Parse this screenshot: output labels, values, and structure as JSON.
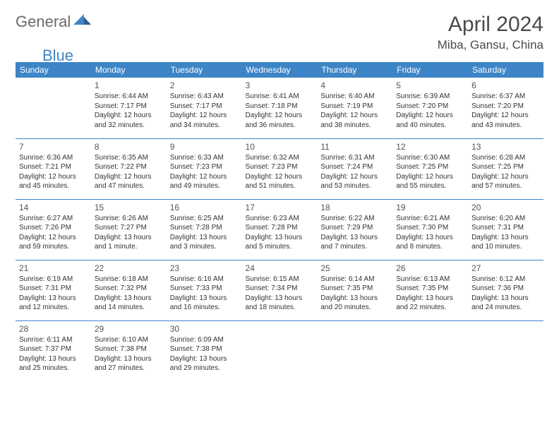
{
  "logo": {
    "part1": "General",
    "part2": "Blue"
  },
  "title": "April 2024",
  "location": "Miba, Gansu, China",
  "colors": {
    "accent": "#3d85c6",
    "text": "#333333",
    "logo_gray": "#6b6b6b"
  },
  "weekdays": [
    "Sunday",
    "Monday",
    "Tuesday",
    "Wednesday",
    "Thursday",
    "Friday",
    "Saturday"
  ],
  "weeks": [
    [
      null,
      {
        "n": "1",
        "sr": "6:44 AM",
        "ss": "7:17 PM",
        "dl": "12 hours and 32 minutes."
      },
      {
        "n": "2",
        "sr": "6:43 AM",
        "ss": "7:17 PM",
        "dl": "12 hours and 34 minutes."
      },
      {
        "n": "3",
        "sr": "6:41 AM",
        "ss": "7:18 PM",
        "dl": "12 hours and 36 minutes."
      },
      {
        "n": "4",
        "sr": "6:40 AM",
        "ss": "7:19 PM",
        "dl": "12 hours and 38 minutes."
      },
      {
        "n": "5",
        "sr": "6:39 AM",
        "ss": "7:20 PM",
        "dl": "12 hours and 40 minutes."
      },
      {
        "n": "6",
        "sr": "6:37 AM",
        "ss": "7:20 PM",
        "dl": "12 hours and 43 minutes."
      }
    ],
    [
      {
        "n": "7",
        "sr": "6:36 AM",
        "ss": "7:21 PM",
        "dl": "12 hours and 45 minutes."
      },
      {
        "n": "8",
        "sr": "6:35 AM",
        "ss": "7:22 PM",
        "dl": "12 hours and 47 minutes."
      },
      {
        "n": "9",
        "sr": "6:33 AM",
        "ss": "7:23 PM",
        "dl": "12 hours and 49 minutes."
      },
      {
        "n": "10",
        "sr": "6:32 AM",
        "ss": "7:23 PM",
        "dl": "12 hours and 51 minutes."
      },
      {
        "n": "11",
        "sr": "6:31 AM",
        "ss": "7:24 PM",
        "dl": "12 hours and 53 minutes."
      },
      {
        "n": "12",
        "sr": "6:30 AM",
        "ss": "7:25 PM",
        "dl": "12 hours and 55 minutes."
      },
      {
        "n": "13",
        "sr": "6:28 AM",
        "ss": "7:25 PM",
        "dl": "12 hours and 57 minutes."
      }
    ],
    [
      {
        "n": "14",
        "sr": "6:27 AM",
        "ss": "7:26 PM",
        "dl": "12 hours and 59 minutes."
      },
      {
        "n": "15",
        "sr": "6:26 AM",
        "ss": "7:27 PM",
        "dl": "13 hours and 1 minute."
      },
      {
        "n": "16",
        "sr": "6:25 AM",
        "ss": "7:28 PM",
        "dl": "13 hours and 3 minutes."
      },
      {
        "n": "17",
        "sr": "6:23 AM",
        "ss": "7:28 PM",
        "dl": "13 hours and 5 minutes."
      },
      {
        "n": "18",
        "sr": "6:22 AM",
        "ss": "7:29 PM",
        "dl": "13 hours and 7 minutes."
      },
      {
        "n": "19",
        "sr": "6:21 AM",
        "ss": "7:30 PM",
        "dl": "13 hours and 8 minutes."
      },
      {
        "n": "20",
        "sr": "6:20 AM",
        "ss": "7:31 PM",
        "dl": "13 hours and 10 minutes."
      }
    ],
    [
      {
        "n": "21",
        "sr": "6:19 AM",
        "ss": "7:31 PM",
        "dl": "13 hours and 12 minutes."
      },
      {
        "n": "22",
        "sr": "6:18 AM",
        "ss": "7:32 PM",
        "dl": "13 hours and 14 minutes."
      },
      {
        "n": "23",
        "sr": "6:16 AM",
        "ss": "7:33 PM",
        "dl": "13 hours and 16 minutes."
      },
      {
        "n": "24",
        "sr": "6:15 AM",
        "ss": "7:34 PM",
        "dl": "13 hours and 18 minutes."
      },
      {
        "n": "25",
        "sr": "6:14 AM",
        "ss": "7:35 PM",
        "dl": "13 hours and 20 minutes."
      },
      {
        "n": "26",
        "sr": "6:13 AM",
        "ss": "7:35 PM",
        "dl": "13 hours and 22 minutes."
      },
      {
        "n": "27",
        "sr": "6:12 AM",
        "ss": "7:36 PM",
        "dl": "13 hours and 24 minutes."
      }
    ],
    [
      {
        "n": "28",
        "sr": "6:11 AM",
        "ss": "7:37 PM",
        "dl": "13 hours and 25 minutes."
      },
      {
        "n": "29",
        "sr": "6:10 AM",
        "ss": "7:38 PM",
        "dl": "13 hours and 27 minutes."
      },
      {
        "n": "30",
        "sr": "6:09 AM",
        "ss": "7:38 PM",
        "dl": "13 hours and 29 minutes."
      },
      null,
      null,
      null,
      null
    ]
  ],
  "labels": {
    "sunrise": "Sunrise: ",
    "sunset": "Sunset: ",
    "daylight": "Daylight: "
  }
}
